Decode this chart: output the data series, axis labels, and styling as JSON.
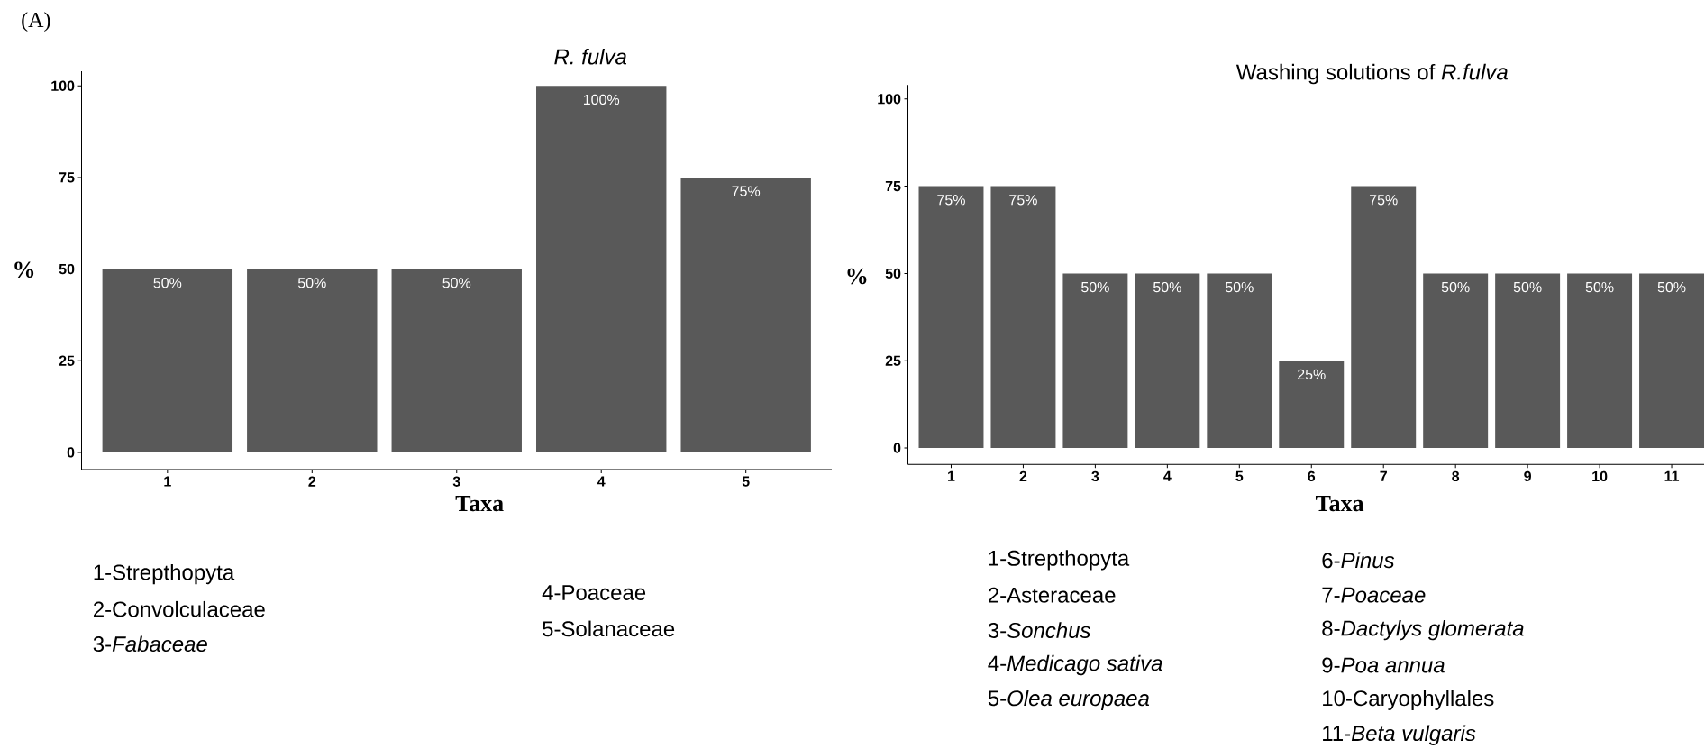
{
  "chart_data": [
    {
      "type": "bar",
      "title": "*R. fulva*",
      "xlabel": "Taxa",
      "ylabel": "%",
      "categories": [
        "1",
        "2",
        "3",
        "4",
        "5"
      ],
      "values": [
        50,
        50,
        50,
        100,
        75
      ],
      "value_labels": [
        "50%",
        "50%",
        "50%",
        "100%",
        "75%"
      ],
      "color": "#595959",
      "ylim": [
        -4.7,
        104
      ],
      "yticks": [
        0,
        25,
        50,
        75,
        100
      ],
      "grid": false,
      "annotations": [
        "(A)",
        "1-Strepthopyta",
        "2-Convolculaceae",
        "3-*Fabaceae*",
        "4-Poaceae",
        "5-Solanaceae"
      ]
    },
    {
      "type": "bar",
      "title": "Washing solutions of *R.fulva*",
      "xlabel": "Taxa",
      "ylabel": "%",
      "categories": [
        "1",
        "2",
        "3",
        "4",
        "5",
        "6",
        "7",
        "8",
        "9",
        "10",
        "11"
      ],
      "values": [
        75,
        75,
        50,
        50,
        50,
        25,
        75,
        50,
        50,
        50,
        50
      ],
      "value_labels": [
        "75%",
        "75%",
        "50%",
        "50%",
        "50%",
        "25%",
        "75%",
        "50%",
        "50%",
        "50%",
        "50%"
      ],
      "color": "#595959",
      "ylim": [
        -4.7,
        104
      ],
      "yticks": [
        0,
        25,
        50,
        75,
        100
      ],
      "grid": false,
      "annotations": [
        "1-Strepthopyta",
        "2-Asteraceae",
        "3-*Sonchus*",
        "4-*Medicago sativa*",
        "5-*Olea europaea*",
        "6-*Pinus*",
        "7-*Poaceae*",
        "8-*Dactylys glomerata*",
        "9-*Poa annua*",
        "10-Caryophyllales",
        "11-*Beta vulgaris*"
      ]
    }
  ]
}
